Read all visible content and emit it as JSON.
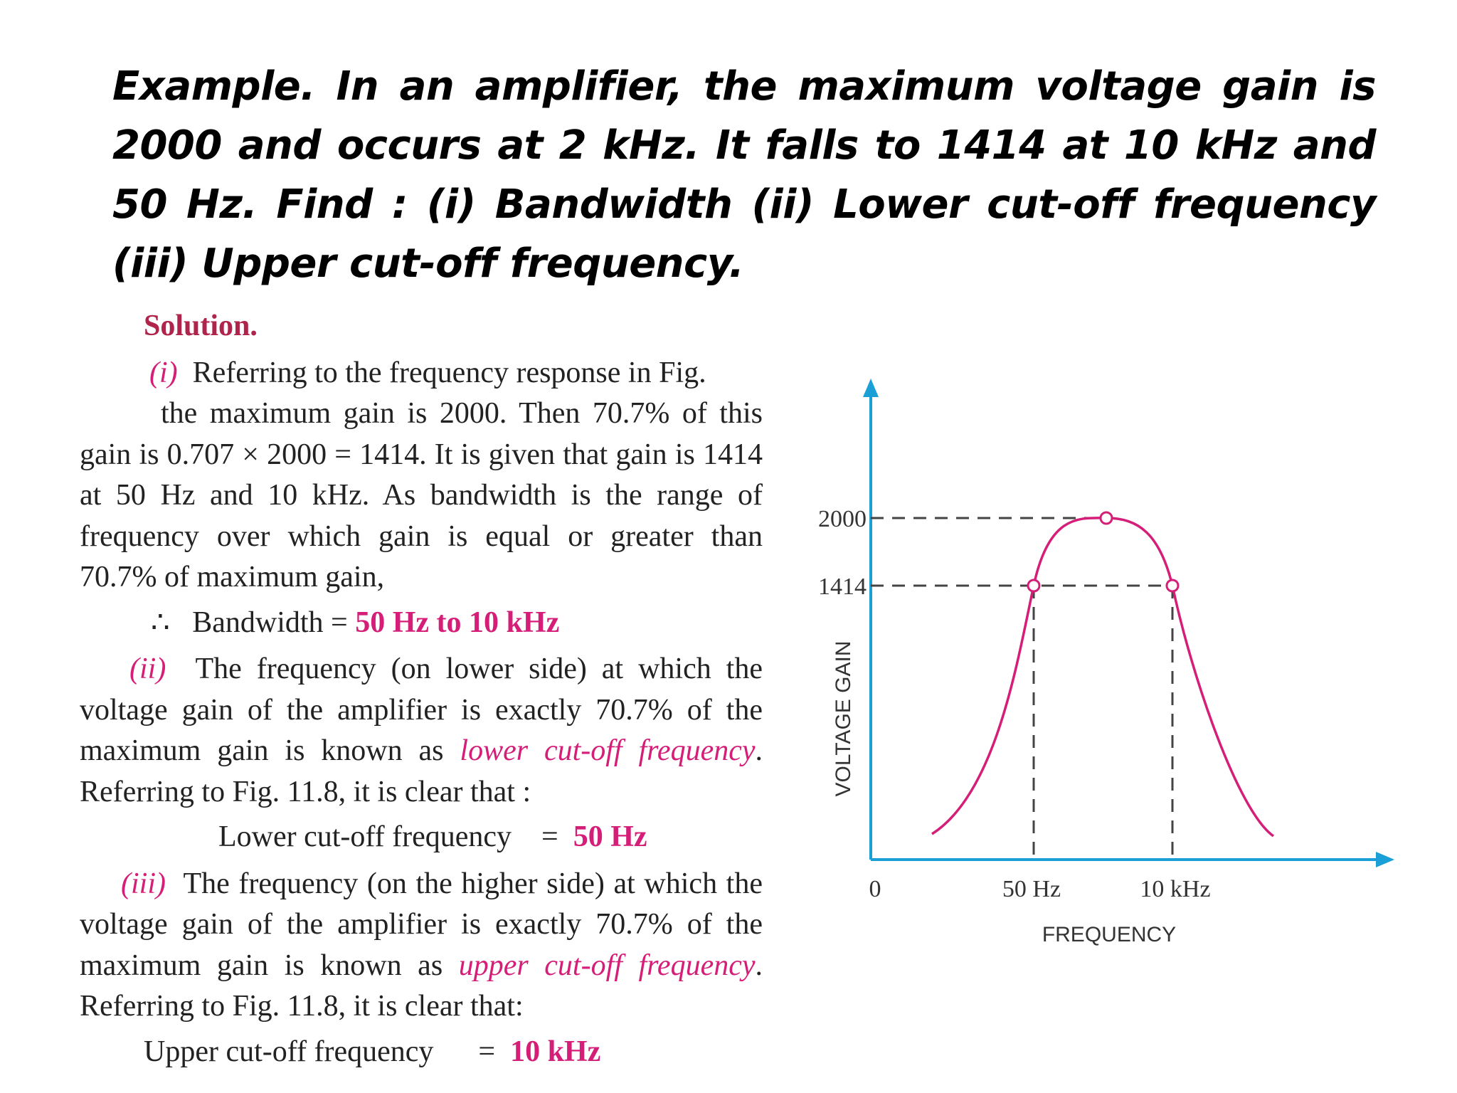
{
  "title": "Example. In an amplifier, the maximum voltage gain is 2000 and occurs at 2 kHz. It falls to 1414 at 10 kHz and 50 Hz. Find : (i) Bandwidth (ii) Lower cut-off frequency (iii) Upper cut-off frequency.",
  "solution": {
    "heading": "Solution.",
    "part1": {
      "label": "(i)",
      "line1": "Referring to the frequency response in Fig.",
      "text": "the maximum gain is 2000.  Then 70.7% of this gain is 0.707 × 2000 = 1414.  It is given that gain is 1414 at 50 Hz and 10 kHz.  As bandwidth is the range of frequency over which gain is equal or greater than 70.7% of maximum gain,",
      "therefore": "∴",
      "result_label": "Bandwidth =",
      "result_value": "50 Hz to 10 kHz"
    },
    "part2": {
      "label": "(ii)",
      "text_before": "The frequency (on lower side) at which the voltage gain of the amplifier is exactly 70.7% of the maximum gain is known as",
      "term": "lower cut-off frequency",
      "text_after": ". Referring to Fig. 11.8, it is clear that :",
      "result_label": "Lower cut-off frequency",
      "equals": "=",
      "result_value": "50 Hz"
    },
    "part3": {
      "label": "(iii)",
      "text_before": "The frequency (on the higher side) at which the voltage gain of the amplifier is exactly 70.7% of the maximum gain is known as",
      "term": "upper cut-off frequency",
      "text_after": ". Referring to Fig. 11.8, it is clear that:",
      "result_label": "Upper cut-off frequency",
      "equals": "=",
      "result_value": "10 kHz"
    }
  },
  "figure": {
    "ylabel": "VOLTAGE GAIN",
    "xlabel": "FREQUENCY",
    "origin": "0",
    "y_ticks": [
      "2000",
      "1414"
    ],
    "x_ticks": [
      "50 Hz",
      "10 kHz"
    ],
    "colors": {
      "axis": "#1a9fd6",
      "curve": "#d41e78",
      "dash": "#444444"
    }
  }
}
